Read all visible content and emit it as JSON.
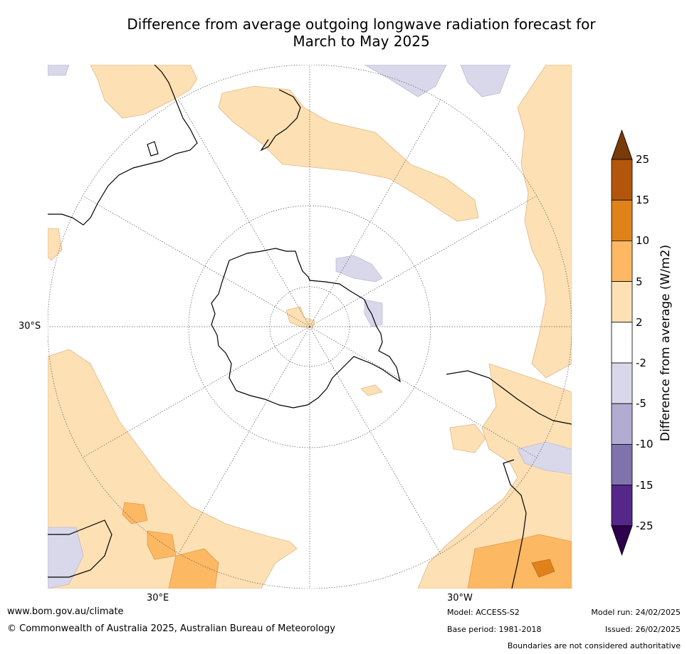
{
  "title_line1": "Difference from average outgoing longwave radiation forecast for",
  "title_line2": "March to May 2025",
  "map": {
    "projection": "south-polar-stereographic",
    "lat_label": "30°S",
    "lon_labels": [
      "30°E",
      "30°W"
    ]
  },
  "colorbar": {
    "label": "Difference from average (W/m2)",
    "ticks": [
      "25",
      "15",
      "10",
      "5",
      "2",
      "-2",
      "-5",
      "-10",
      "-15",
      "-25"
    ],
    "colors": [
      "#7a3a0a",
      "#b3560c",
      "#e0821a",
      "#fdb863",
      "#fde0b4",
      "#ffffff",
      "#d8d8ea",
      "#b2abd2",
      "#8073ac",
      "#542788",
      "#2d004b"
    ]
  },
  "footer": {
    "website": "www.bom.gov.au/climate",
    "copyright": "© Commonwealth of Australia 2025, Australian Bureau of Meteorology",
    "model": "Model: ACCESS-S2",
    "base_period": "Base period: 1981-2018",
    "model_run": "Model run: 24/02/2025",
    "issued": "Issued: 26/02/2025",
    "disclaimer": "Boundaries are not considered authoritative"
  }
}
